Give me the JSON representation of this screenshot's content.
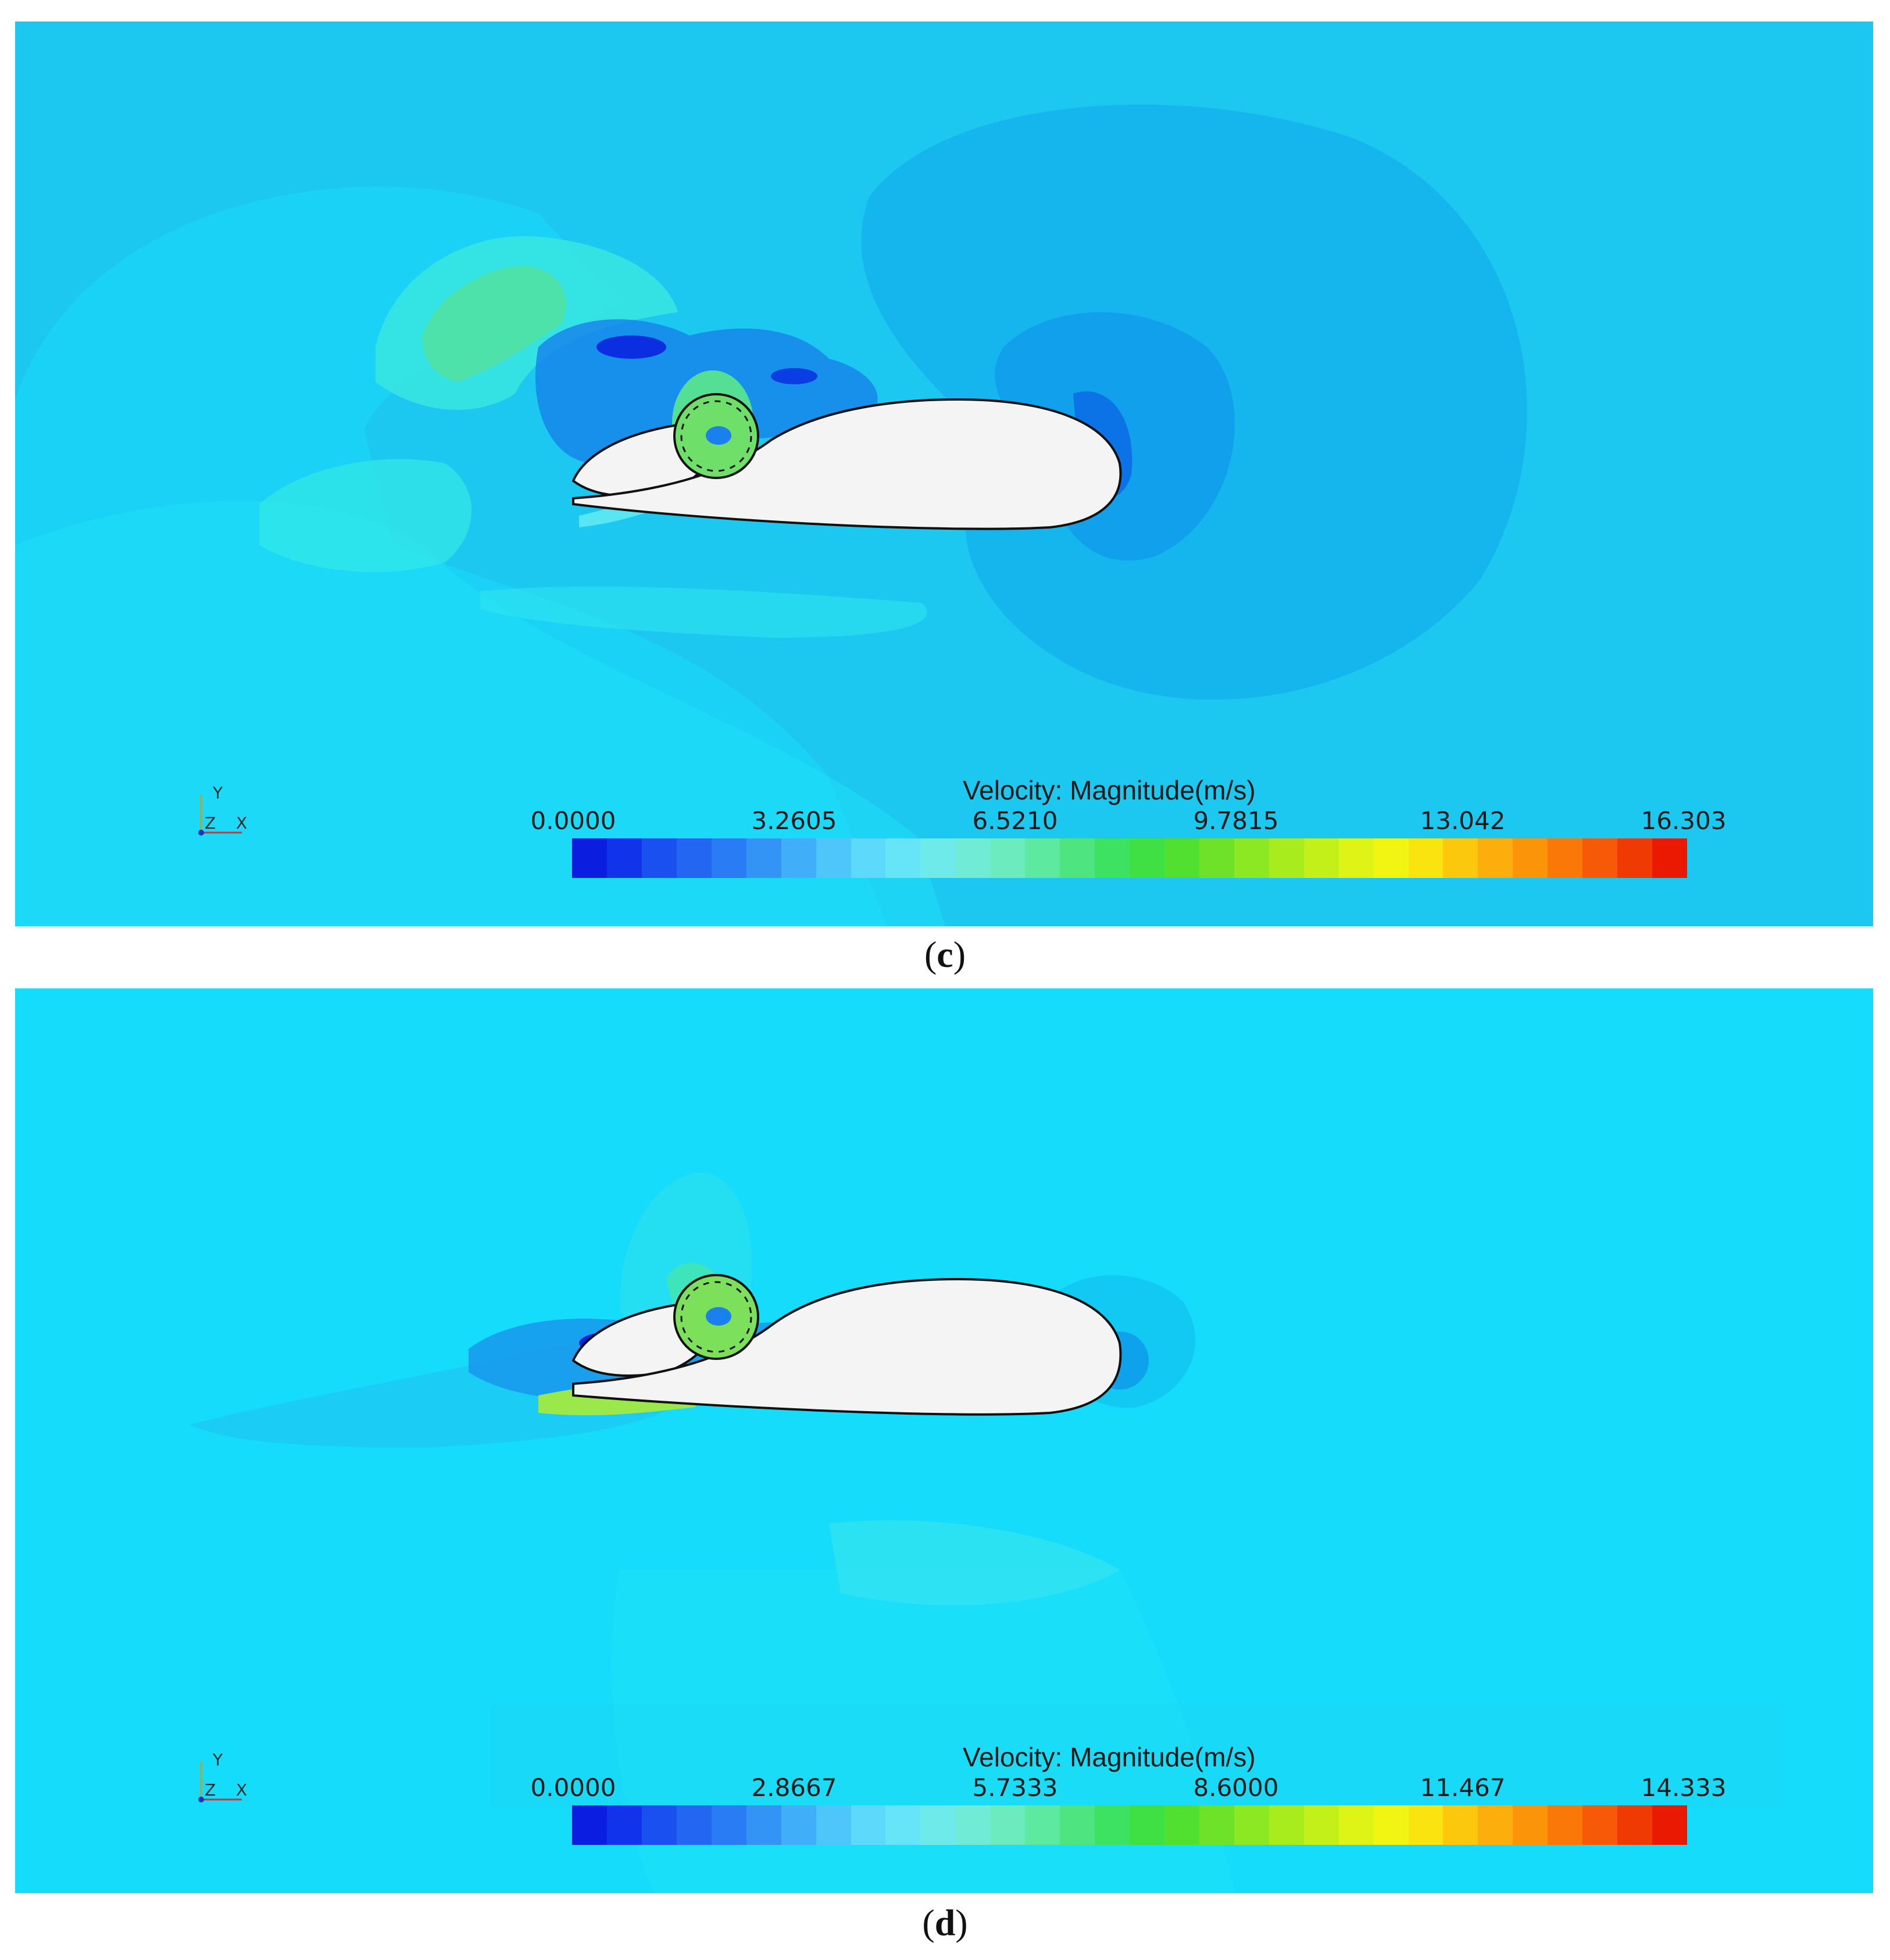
{
  "panels": [
    {
      "id": "c",
      "caption_open": "(",
      "caption_letter": "c",
      "caption_close": ")",
      "legend_title": "Velocity: Magnitude(m/s)",
      "ticks": [
        "0.0000",
        "3.2605",
        "6.5210",
        "9.7815",
        "13.042",
        "16.303"
      ],
      "axes": {
        "y": "Y",
        "z": "Z",
        "x": "X"
      }
    },
    {
      "id": "d",
      "caption_open": "(",
      "caption_letter": "d",
      "caption_close": ")",
      "legend_title": "Velocity: Magnitude(m/s)",
      "ticks": [
        "0.0000",
        "2.8667",
        "5.7333",
        "8.6000",
        "11.467",
        "14.333"
      ],
      "axes": {
        "y": "Y",
        "z": "Z",
        "x": "X"
      }
    }
  ],
  "colors": {
    "background_c": "#1cc8f0",
    "background_d": "#15dcfa",
    "airfoil": "#f4f4f4",
    "colorbar": [
      "#0b1ee0",
      "#1133ea",
      "#1a50ef",
      "#2266f2",
      "#2a7cf5",
      "#3494f6",
      "#40aef8",
      "#4ec6fa",
      "#5cd9fb",
      "#66e4f8",
      "#6eeaea",
      "#70ecd6",
      "#6cecbe",
      "#5ee9a0",
      "#4ee580",
      "#3ee262",
      "#3ee044",
      "#52e030",
      "#6ee228",
      "#8ce822",
      "#a8ec1e",
      "#c4f01a",
      "#def416",
      "#f2f412",
      "#fae410",
      "#fcc80e",
      "#fcae0c",
      "#fc940a",
      "#fa7808",
      "#f65a06",
      "#f03a04",
      "#ea1a02"
    ]
  }
}
